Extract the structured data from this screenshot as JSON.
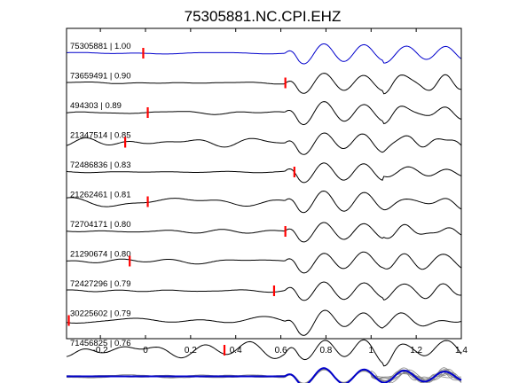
{
  "chart_data": {
    "type": "line",
    "title": "75305881.NC.CPI.EHZ",
    "xlabel": "",
    "ylabel": "",
    "xlim": [
      -0.35,
      1.4
    ],
    "x_ticks": [
      -0.2,
      0,
      0.2,
      0.4,
      0.6,
      0.8,
      1,
      1.2,
      1.4
    ],
    "x_tick_labels": [
      "-0.2",
      "0",
      "0.2",
      "0.4",
      "0.6",
      "0.8",
      "1",
      "1.2",
      "1.4"
    ],
    "grid": false,
    "series": [
      {
        "name": "75305881 | 1.00",
        "pick_time": -0.01,
        "color": "#0000cc",
        "noise": 0.02,
        "amp": 1.0
      },
      {
        "name": "73659491 | 0.90",
        "pick_time": 0.62,
        "color": "#000000",
        "noise": 0.03,
        "amp": 1.0
      },
      {
        "name": "494303 | 0.89",
        "pick_time": 0.01,
        "color": "#000000",
        "noise": 0.03,
        "amp": 1.0
      },
      {
        "name": "21347514 | 0.85",
        "pick_time": -0.09,
        "color": "#000000",
        "noise": 0.08,
        "amp": 1.0
      },
      {
        "name": "72486836 | 0.83",
        "pick_time": 0.66,
        "color": "#000000",
        "noise": 0.03,
        "amp": 1.0
      },
      {
        "name": "21262461 | 0.81",
        "pick_time": 0.01,
        "color": "#000000",
        "noise": 0.08,
        "amp": 1.0
      },
      {
        "name": "72704171 | 0.80",
        "pick_time": 0.62,
        "color": "#000000",
        "noise": 0.05,
        "amp": 1.0
      },
      {
        "name": "21290674 | 0.80",
        "pick_time": -0.07,
        "color": "#000000",
        "noise": 0.06,
        "amp": 1.0
      },
      {
        "name": "72427296 | 0.79",
        "pick_time": 0.57,
        "color": "#000000",
        "noise": 0.02,
        "amp": 1.0
      },
      {
        "name": "30225602 | 0.79",
        "pick_time": -0.34,
        "color": "#000000",
        "noise": 0.1,
        "amp": 1.0
      },
      {
        "name": "71456825 | 0.76",
        "pick_time": 0.35,
        "color": "#000000",
        "noise": 0.22,
        "amp": 1.0
      }
    ],
    "stack": {
      "color_overlay": "#888888",
      "color_mean": "#0000cc"
    }
  }
}
